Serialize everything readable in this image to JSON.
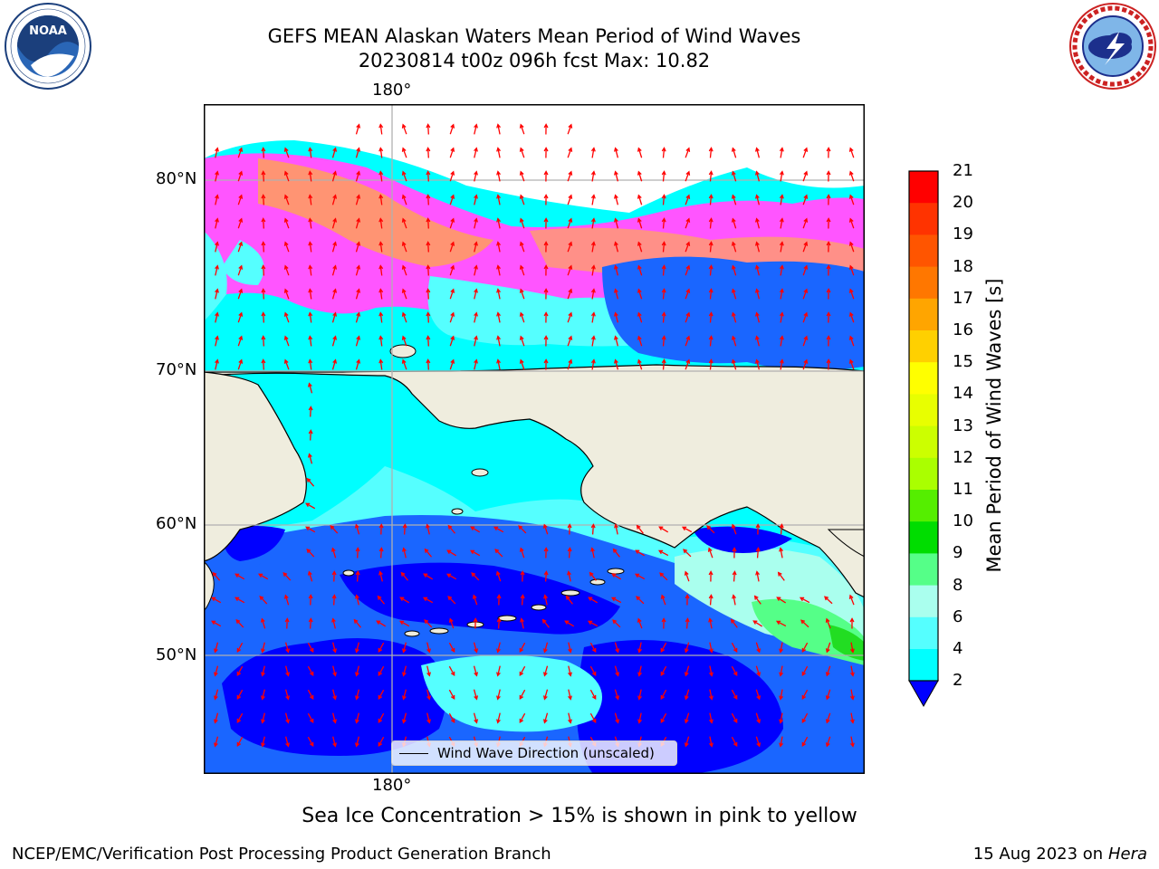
{
  "title_line1": "GEFS MEAN Alaskan Waters Mean Period of Wind Waves",
  "title_line2": "20230814 t00z 096h fcst   Max: 10.82",
  "logos": {
    "left": "noaa-logo",
    "right": "nws-logo"
  },
  "map": {
    "lon_label_top": "180°",
    "lon_label_bottom": "180°",
    "lat_labels": [
      "80°N",
      "70°N",
      "60°N",
      "50°N"
    ],
    "legend": "Wind Wave Direction (unscaled)",
    "land_color": "#efedde",
    "arrow_color": "#ff0000"
  },
  "colorbar": {
    "label": "Mean Period of Wind Waves [s]",
    "ticks": [
      "21",
      "20",
      "19",
      "18",
      "17",
      "16",
      "15",
      "14",
      "13",
      "12",
      "11",
      "10",
      "9",
      "8",
      "6",
      "4",
      "2"
    ],
    "colors": [
      "#ff0000",
      "#ff3300",
      "#ff5500",
      "#ff7700",
      "#ffa500",
      "#ffd000",
      "#ffff00",
      "#e8ff00",
      "#ccff00",
      "#aaff00",
      "#55ee00",
      "#00dd00",
      "#55ff88",
      "#aaffee",
      "#55ffff",
      "#00ffff",
      "#0077ff",
      "#0000ff"
    ]
  },
  "caption": "Sea Ice Concentration > 15% is shown in pink to yellow",
  "footer_left": "NCEP/EMC/Verification Post Processing Product Generation Branch",
  "footer_date": "15 Aug 2023 on",
  "footer_machine": "Hera"
}
